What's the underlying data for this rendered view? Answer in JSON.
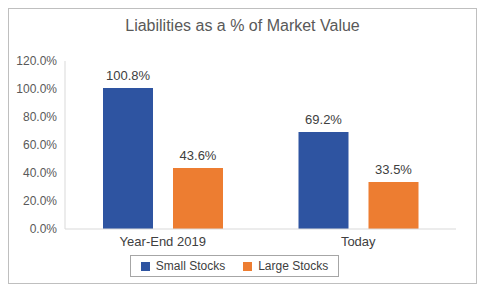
{
  "chart_data": {
    "type": "bar",
    "title": "Liabilities as a % of Market Value",
    "categories": [
      "Year-End 2019",
      "Today"
    ],
    "series": [
      {
        "name": "Small Stocks",
        "color": "#2e54a1",
        "values": [
          100.8,
          69.2
        ],
        "value_labels": [
          "100.8%",
          "69.2%"
        ]
      },
      {
        "name": "Large Stocks",
        "color": "#ed7d31",
        "values": [
          43.6,
          33.5
        ],
        "value_labels": [
          "43.6%",
          "33.5%"
        ]
      }
    ],
    "ylim": [
      0,
      120
    ],
    "yticks": [
      {
        "value": 0,
        "label": "0.0%"
      },
      {
        "value": 20,
        "label": "20.0%"
      },
      {
        "value": 40,
        "label": "40.0%"
      },
      {
        "value": 60,
        "label": "60.0%"
      },
      {
        "value": 80,
        "label": "80.0%"
      },
      {
        "value": 100,
        "label": "100.0%"
      },
      {
        "value": 120,
        "label": "120.0%"
      }
    ],
    "grid": false,
    "legend": "bottom",
    "data_labels": true
  }
}
